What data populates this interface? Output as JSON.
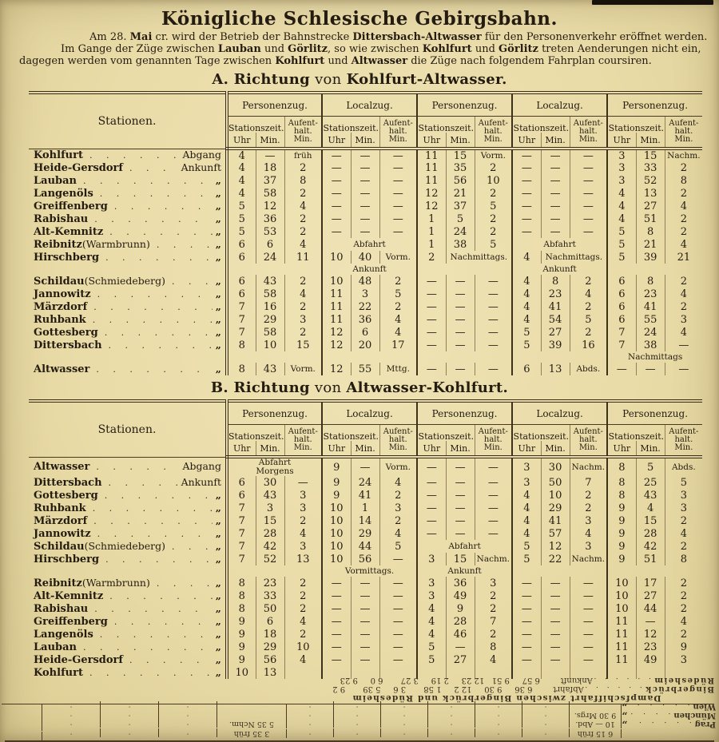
{
  "page": {
    "title": "Königliche Schlesische Gebirgsbahn.",
    "intro_lines": [
      [
        {
          "t": "Am 28. "
        },
        {
          "t": "Mai",
          "b": 1
        },
        {
          "t": " cr. wird der Betrieb der Bahnstrecke "
        },
        {
          "t": "Dittersbach-Altwasser",
          "b": 1
        },
        {
          "t": " für den Personenverkehr eröffnet werden."
        }
      ],
      [
        {
          "t": "Im Gange der Züge zwischen "
        },
        {
          "t": "Lauban",
          "b": 1
        },
        {
          "t": " und "
        },
        {
          "t": "Görlitz",
          "b": 1
        },
        {
          "t": ", so wie zwischen "
        },
        {
          "t": "Kohlfurt",
          "b": 1
        },
        {
          "t": " und "
        },
        {
          "t": "Görlitz",
          "b": 1
        },
        {
          "t": " treten Aenderungen nicht ein,"
        }
      ],
      [
        {
          "t": "dagegen werden vom genannten Tage zwischen "
        },
        {
          "t": "Kohlfurt",
          "b": 1
        },
        {
          "t": " und "
        },
        {
          "t": "Altwasser",
          "b": 1
        },
        {
          "t": " die Züge nach folgendem Fahrplan coursiren."
        }
      ]
    ]
  },
  "section_a": {
    "title_parts": [
      {
        "t": "A. Richtung",
        "b": 1
      },
      {
        "t": " von "
      },
      {
        "t": "Kohlfurt-Altwasser.",
        "b": 1
      }
    ]
  },
  "section_b": {
    "title_parts": [
      {
        "t": "B. Richtung",
        "b": 1
      },
      {
        "t": " von "
      },
      {
        "t": "Altwasser-Kohlfurt.",
        "b": 1
      }
    ]
  },
  "table_header": {
    "stationen": "Stationen.",
    "groups": [
      "Personenzug.",
      "Localzug.",
      "Personenzug.",
      "Localzug.",
      "Personenzug."
    ],
    "stationszeit": "Stationszeit.",
    "aufenthalt": [
      "Aufent-",
      "halt.",
      "Min."
    ],
    "uhr": "Uhr",
    "min": "Min."
  },
  "table_a": {
    "rows": [
      {
        "name": "Kohlfurt",
        "suffix": "Abgang",
        "groups": [
          [
            "4",
            "—",
            "früh"
          ],
          [
            "—",
            "—",
            "—"
          ],
          [
            "11",
            "15",
            "Vorm."
          ],
          [
            "—",
            "—",
            "—"
          ],
          [
            "3",
            "15",
            "Nachm."
          ]
        ]
      },
      {
        "name": "Heide-Gersdorf",
        "suffix": "Ankunft",
        "groups": [
          [
            "4",
            "18",
            "2"
          ],
          [
            "—",
            "—",
            "—"
          ],
          [
            "11",
            "35",
            "2"
          ],
          [
            "—",
            "—",
            "—"
          ],
          [
            "3",
            "33",
            "2"
          ]
        ]
      },
      {
        "name": "Lauban",
        "suffix": "„",
        "groups": [
          [
            "4",
            "37",
            "8"
          ],
          [
            "—",
            "—",
            "—"
          ],
          [
            "11",
            "56",
            "10"
          ],
          [
            "—",
            "—",
            "—"
          ],
          [
            "3",
            "52",
            "8"
          ]
        ]
      },
      {
        "name": "Langenöls",
        "suffix": "„",
        "groups": [
          [
            "4",
            "58",
            "2"
          ],
          [
            "—",
            "—",
            "—"
          ],
          [
            "12",
            "21",
            "2"
          ],
          [
            "—",
            "—",
            "—"
          ],
          [
            "4",
            "13",
            "2"
          ]
        ]
      },
      {
        "name": "Greiffenberg",
        "suffix": "„",
        "groups": [
          [
            "5",
            "12",
            "4"
          ],
          [
            "—",
            "—",
            "—"
          ],
          [
            "12",
            "37",
            "5"
          ],
          [
            "—",
            "—",
            "—"
          ],
          [
            "4",
            "27",
            "4"
          ]
        ]
      },
      {
        "name": "Rabishau",
        "suffix": "„",
        "groups": [
          [
            "5",
            "36",
            "2"
          ],
          [
            "—",
            "—",
            "—"
          ],
          [
            "1",
            "5",
            "2"
          ],
          [
            "—",
            "—",
            "—"
          ],
          [
            "4",
            "51",
            "2"
          ]
        ]
      },
      {
        "name": "Alt-Kemnitz",
        "suffix": "„",
        "groups": [
          [
            "5",
            "53",
            "2"
          ],
          [
            "—",
            "—",
            "—"
          ],
          [
            "1",
            "24",
            "2"
          ],
          [
            "—",
            "—",
            "—"
          ],
          [
            "5",
            "8",
            "2"
          ]
        ]
      },
      {
        "name": "Reibnitz (Warmbrunn)",
        "suffix": "„",
        "groups": [
          [
            "6",
            "6",
            "4"
          ],
          {
            "span": "Abfahrt"
          },
          [
            "1",
            "38",
            "5"
          ],
          {
            "span": "Abfahrt"
          },
          [
            "5",
            "21",
            "4"
          ]
        ]
      },
      {
        "name": "Hirschberg",
        "suffix": "„",
        "groups": [
          [
            "6",
            "24",
            "11"
          ],
          [
            "10",
            "40",
            "Vorm."
          ],
          {
            "u": "2",
            "span2": "Nachmittags."
          },
          {
            "u": "4",
            "span2": "Nachmittags."
          },
          [
            "5",
            "39",
            "21"
          ]
        ]
      },
      {
        "label_row": [
          "",
          "Ankunft",
          "",
          "Ankunft",
          ""
        ]
      },
      {
        "name": "Schildau (Schmiedeberg)",
        "suffix": "„",
        "groups": [
          [
            "6",
            "43",
            "2"
          ],
          [
            "10",
            "48",
            "2"
          ],
          [
            "—",
            "—",
            "—"
          ],
          [
            "4",
            "8",
            "2"
          ],
          [
            "6",
            "8",
            "2"
          ]
        ]
      },
      {
        "name": "Jannowitz",
        "suffix": "„",
        "groups": [
          [
            "6",
            "58",
            "4"
          ],
          [
            "11",
            "3",
            "5"
          ],
          [
            "—",
            "—",
            "—"
          ],
          [
            "4",
            "23",
            "4"
          ],
          [
            "6",
            "23",
            "4"
          ]
        ]
      },
      {
        "name": "Märzdorf",
        "suffix": "„",
        "groups": [
          [
            "7",
            "16",
            "2"
          ],
          [
            "11",
            "22",
            "2"
          ],
          [
            "—",
            "—",
            "—"
          ],
          [
            "4",
            "41",
            "2"
          ],
          [
            "6",
            "41",
            "2"
          ]
        ]
      },
      {
        "name": "Ruhbank",
        "suffix": "„",
        "groups": [
          [
            "7",
            "29",
            "3"
          ],
          [
            "11",
            "36",
            "4"
          ],
          [
            "—",
            "—",
            "—"
          ],
          [
            "4",
            "54",
            "5"
          ],
          [
            "6",
            "55",
            "3"
          ]
        ]
      },
      {
        "name": "Gottesberg",
        "suffix": "„",
        "groups": [
          [
            "7",
            "58",
            "2"
          ],
          [
            "12",
            "6",
            "4"
          ],
          [
            "—",
            "—",
            "—"
          ],
          [
            "5",
            "27",
            "2"
          ],
          [
            "7",
            "24",
            "4"
          ]
        ]
      },
      {
        "name": "Dittersbach",
        "suffix": "„",
        "groups": [
          [
            "8",
            "10",
            "15"
          ],
          [
            "12",
            "20",
            "17"
          ],
          [
            "—",
            "—",
            "—"
          ],
          [
            "5",
            "39",
            "16"
          ],
          [
            "7",
            "38",
            "—"
          ]
        ]
      },
      {
        "label_row": [
          "",
          "",
          "",
          "",
          "Nachmittags"
        ]
      },
      {
        "name": "Altwasser",
        "suffix": "„",
        "groups": [
          [
            "8",
            "43",
            "Vorm."
          ],
          [
            "12",
            "55",
            "Mttg."
          ],
          [
            "—",
            "—",
            "—"
          ],
          [
            "6",
            "13",
            "Abds."
          ],
          [
            "—",
            "—",
            "—"
          ]
        ]
      }
    ]
  },
  "table_b": {
    "rows": [
      {
        "name": "Altwasser",
        "suffix": "Abgang",
        "groups": [
          {
            "span": [
              "Abfahrt",
              "Morgens"
            ]
          },
          [
            "9",
            "—",
            "Vorm."
          ],
          [
            "—",
            "—",
            "—"
          ],
          [
            "3",
            "30",
            "Nachm."
          ],
          [
            "8",
            "5",
            "Abds."
          ]
        ]
      },
      {
        "name": "Dittersbach",
        "suffix": "Ankunft",
        "groups": [
          [
            "6",
            "30",
            "—"
          ],
          [
            "9",
            "24",
            "4"
          ],
          [
            "—",
            "—",
            "—"
          ],
          [
            "3",
            "50",
            "7"
          ],
          [
            "8",
            "25",
            "5"
          ]
        ]
      },
      {
        "name": "Gottesberg",
        "suffix": "„",
        "groups": [
          [
            "6",
            "43",
            "3"
          ],
          [
            "9",
            "41",
            "2"
          ],
          [
            "—",
            "—",
            "—"
          ],
          [
            "4",
            "10",
            "2"
          ],
          [
            "8",
            "43",
            "3"
          ]
        ]
      },
      {
        "name": "Ruhbank",
        "suffix": "„",
        "groups": [
          [
            "7",
            "3",
            "3"
          ],
          [
            "10",
            "1",
            "3"
          ],
          [
            "—",
            "—",
            "—"
          ],
          [
            "4",
            "29",
            "2"
          ],
          [
            "9",
            "4",
            "3"
          ]
        ]
      },
      {
        "name": "Märzdorf",
        "suffix": "„",
        "groups": [
          [
            "7",
            "15",
            "2"
          ],
          [
            "10",
            "14",
            "2"
          ],
          [
            "—",
            "—",
            "—"
          ],
          [
            "4",
            "41",
            "3"
          ],
          [
            "9",
            "15",
            "2"
          ]
        ]
      },
      {
        "name": "Jannowitz",
        "suffix": "„",
        "groups": [
          [
            "7",
            "28",
            "4"
          ],
          [
            "10",
            "29",
            "4"
          ],
          [
            "—",
            "—",
            "—"
          ],
          [
            "4",
            "57",
            "4"
          ],
          [
            "9",
            "28",
            "4"
          ]
        ]
      },
      {
        "name": "Schildau (Schmiedeberg)",
        "suffix": "„",
        "groups": [
          [
            "7",
            "42",
            "3"
          ],
          [
            "10",
            "44",
            "5"
          ],
          {
            "span": "Abfahrt"
          },
          [
            "5",
            "12",
            "3"
          ],
          [
            "9",
            "42",
            "2"
          ]
        ]
      },
      {
        "name": "Hirschberg",
        "suffix": "„",
        "groups": [
          [
            "7",
            "52",
            "13"
          ],
          [
            "10",
            "56",
            "—"
          ],
          [
            "3",
            "15",
            "Nachm."
          ],
          [
            "5",
            "22",
            "Nachm."
          ],
          [
            "9",
            "51",
            "8"
          ]
        ]
      },
      {
        "label_row": [
          "",
          "Vormittags.",
          "Ankunft",
          "",
          ""
        ]
      },
      {
        "name": "Reibnitz (Warmbrunn)",
        "suffix": "„",
        "groups": [
          [
            "8",
            "23",
            "2"
          ],
          [
            "—",
            "—",
            "—"
          ],
          [
            "3",
            "36",
            "3"
          ],
          [
            "—",
            "—",
            "—"
          ],
          [
            "10",
            "17",
            "2"
          ]
        ]
      },
      {
        "name": "Alt-Kemnitz",
        "suffix": "„",
        "groups": [
          [
            "8",
            "33",
            "2"
          ],
          [
            "—",
            "—",
            "—"
          ],
          [
            "3",
            "49",
            "2"
          ],
          [
            "—",
            "—",
            "—"
          ],
          [
            "10",
            "27",
            "2"
          ]
        ]
      },
      {
        "name": "Rabishau",
        "suffix": "„",
        "groups": [
          [
            "8",
            "50",
            "2"
          ],
          [
            "—",
            "—",
            "—"
          ],
          [
            "4",
            "9",
            "2"
          ],
          [
            "—",
            "—",
            "—"
          ],
          [
            "10",
            "44",
            "2"
          ]
        ]
      },
      {
        "name": "Greiffenberg",
        "suffix": "„",
        "groups": [
          [
            "9",
            "6",
            "4"
          ],
          [
            "—",
            "—",
            "—"
          ],
          [
            "4",
            "28",
            "7"
          ],
          [
            "—",
            "—",
            "—"
          ],
          [
            "11",
            "—",
            "4"
          ]
        ]
      },
      {
        "name": "Langenöls",
        "suffix": "„",
        "groups": [
          [
            "9",
            "18",
            "2"
          ],
          [
            "—",
            "—",
            "—"
          ],
          [
            "4",
            "46",
            "2"
          ],
          [
            "—",
            "—",
            "—"
          ],
          [
            "11",
            "12",
            "2"
          ]
        ]
      },
      {
        "name": "Lauban",
        "suffix": "„",
        "groups": [
          [
            "9",
            "29",
            "10"
          ],
          [
            "—",
            "—",
            "—"
          ],
          [
            "5",
            "—",
            "8"
          ],
          [
            "—",
            "—",
            "—"
          ],
          [
            "11",
            "23",
            "9"
          ]
        ]
      },
      {
        "name": "Heide-Gersdorf",
        "suffix": "„",
        "groups": [
          [
            "9",
            "56",
            "4"
          ],
          [
            "—",
            "—",
            "—"
          ],
          [
            "5",
            "27",
            "4"
          ],
          [
            "—",
            "—",
            "—"
          ],
          [
            "11",
            "49",
            "3"
          ]
        ]
      },
      {
        "name": "Kohlfurt",
        "suffix": "„",
        "groups": [
          [
            "10",
            "13",
            ""
          ],
          [
            "",
            "",
            ""
          ],
          [
            "",
            "",
            ""
          ],
          [
            "",
            "",
            ""
          ],
          [
            "",
            "",
            ""
          ]
        ]
      }
    ]
  },
  "footer": {
    "cities_rows": [
      {
        "name": "",
        "suffix": "",
        "t1": "6 15 früh",
        "t2": "3 35 früh"
      },
      {
        "name": "Prag",
        "suffix": "„",
        "t1": "10 — Abd.",
        "t2": "5 35 Nchm."
      },
      {
        "name": "München",
        "suffix": "„",
        "t1": "9 30 Mrgs.",
        "t2": ""
      },
      {
        "name": "Wien",
        "suffix": "„",
        "t1": "",
        "t2": ""
      }
    ],
    "ship_title": "Dampfschiffahrt zwischen Bingerbrück und Rüdesheim",
    "ship_rows": [
      {
        "name": "Bingerbrück",
        "type": "Abfahrt",
        "times": [
          "6 36",
          "9 30",
          "12 2",
          "1 58",
          "3 6",
          "5 39",
          "9 2"
        ]
      },
      {
        "name": "Rüdesheim",
        "type": "Ankunft",
        "times": [
          "6 57",
          "9 51",
          "12 23",
          "2 19",
          "3 27",
          "6 0",
          "9 23"
        ]
      }
    ]
  },
  "colors": {
    "paper": "#eadcA8",
    "ink": "#241c10",
    "rule": "#392d19"
  }
}
